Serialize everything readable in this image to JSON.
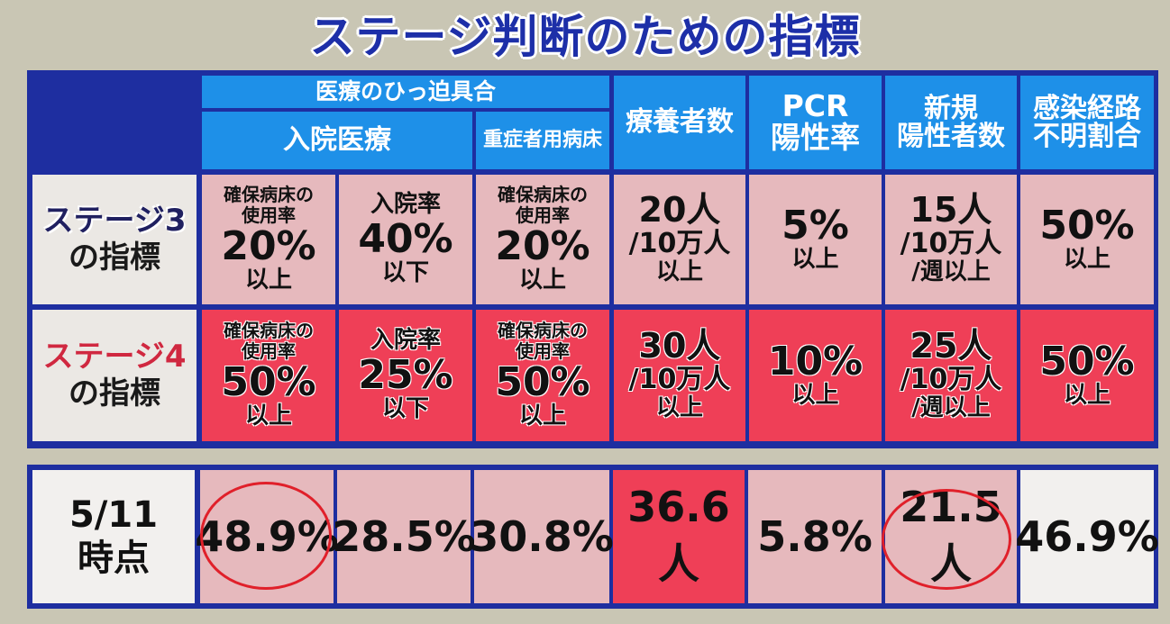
{
  "title": "ステージ判断のための指標",
  "header": {
    "group": "医療のひっ迫具合",
    "hospital": "入院医療",
    "severe_beds": "重症者用病床",
    "recuperating": "療養者数",
    "pcr_line1": "PCR",
    "pcr_line2": "陽性率",
    "new_line1": "新規",
    "new_line2": "陽性者数",
    "unknown_line1": "感染経路",
    "unknown_line2": "不明割合"
  },
  "stage3": {
    "label_line1": "ステージ3",
    "label_line2": "の指標",
    "bed_usage_line1": "確保病床の",
    "bed_usage_line2": "使用率",
    "bed_usage_value": "20%",
    "bed_usage_cond": "以上",
    "admission_line1": "入院率",
    "admission_value": "40%",
    "admission_cond": "以下",
    "severe_line1": "確保病床の",
    "severe_line2": "使用率",
    "severe_value": "20%",
    "severe_cond": "以上",
    "recup_value": "20人",
    "recup_per": "/10万人",
    "recup_cond": "以上",
    "pcr_value": "5%",
    "pcr_cond": "以上",
    "new_value": "15人",
    "new_per": "/10万人",
    "new_cond": "/週以上",
    "unknown_value": "50%",
    "unknown_cond": "以上"
  },
  "stage4": {
    "label_line1": "ステージ4",
    "label_line2": "の指標",
    "bed_usage_line1": "確保病床の",
    "bed_usage_line2": "使用率",
    "bed_usage_value": "50%",
    "bed_usage_cond": "以上",
    "admission_line1": "入院率",
    "admission_value": "25%",
    "admission_cond": "以下",
    "severe_line1": "確保病床の",
    "severe_line2": "使用率",
    "severe_value": "50%",
    "severe_cond": "以上",
    "recup_value": "30人",
    "recup_per": "/10万人",
    "recup_cond": "以上",
    "pcr_value": "10%",
    "pcr_cond": "以上",
    "new_value": "25人",
    "new_per": "/10万人",
    "new_cond": "/週以上",
    "unknown_value": "50%",
    "unknown_cond": "以上"
  },
  "current": {
    "date_line1": "5/11",
    "date_line2": "時点",
    "bed_usage": "48.9%",
    "admission": "28.5%",
    "severe": "30.8%",
    "recup": "36.6人",
    "pcr": "5.8%",
    "new": "21.5人",
    "unknown": "46.9%"
  }
}
